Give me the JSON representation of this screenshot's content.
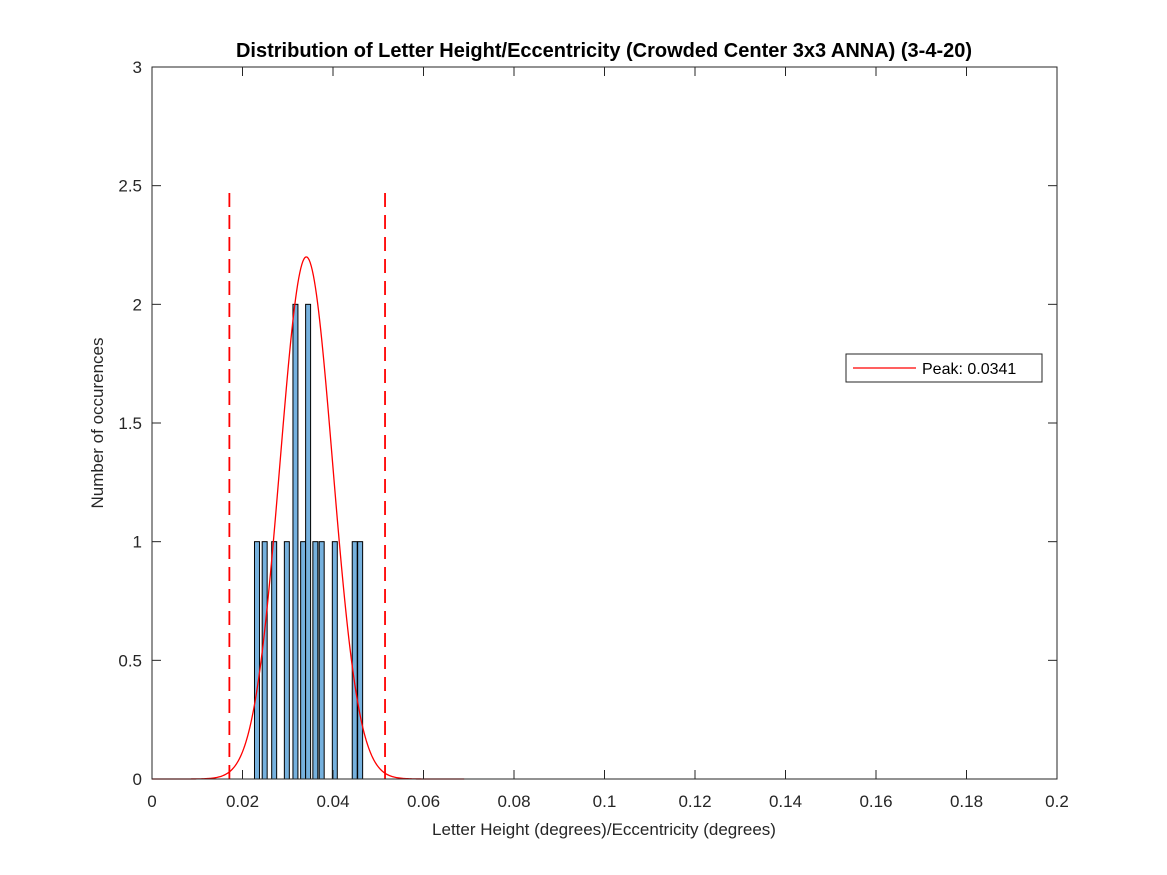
{
  "figure": {
    "background": "#ffffff"
  },
  "chart_data": {
    "type": "bar",
    "title": "Distribution of Letter Height/Eccentricity (Crowded Center 3x3 ANNA) (3-4-20)",
    "xlabel": "Letter Height (degrees)/Eccentricity (degrees)",
    "ylabel": "Number of occurences",
    "xlim": [
      0,
      0.2
    ],
    "ylim": [
      0,
      3
    ],
    "xticks": [
      0,
      0.02,
      0.04,
      0.06,
      0.08,
      0.1,
      0.12,
      0.14,
      0.16,
      0.18,
      0.2
    ],
    "xtick_labels": [
      "0",
      "0.02",
      "0.04",
      "0.06",
      "0.08",
      "0.1",
      "0.12",
      "0.14",
      "0.16",
      "0.18",
      "0.2"
    ],
    "yticks": [
      0,
      0.5,
      1,
      1.5,
      2,
      2.5,
      3
    ],
    "ytick_labels": [
      "0",
      "0.5",
      "1",
      "1.5",
      "2",
      "2.5",
      "3"
    ],
    "grid": false,
    "bar_width": 0.0011,
    "bar_color": "#76b1de",
    "bar_edge_color": "#000000",
    "bars": [
      {
        "x": 0.0232,
        "y": 1
      },
      {
        "x": 0.0249,
        "y": 1
      },
      {
        "x": 0.027,
        "y": 1
      },
      {
        "x": 0.0298,
        "y": 1
      },
      {
        "x": 0.0317,
        "y": 2
      },
      {
        "x": 0.0334,
        "y": 1
      },
      {
        "x": 0.0345,
        "y": 2
      },
      {
        "x": 0.0361,
        "y": 1
      },
      {
        "x": 0.0375,
        "y": 1
      },
      {
        "x": 0.0404,
        "y": 1
      },
      {
        "x": 0.0448,
        "y": 1
      },
      {
        "x": 0.046,
        "y": 1
      }
    ],
    "fit_curve": {
      "type": "gaussian",
      "name": "Peak: 0.0341",
      "peak_x": 0.0341,
      "peak_y": 2.2,
      "sigma": 0.0058,
      "x_range": [
        0,
        0.069
      ],
      "color": "#ff0000"
    },
    "vlines": [
      {
        "x": 0.0171,
        "y_range": [
          0,
          2.5
        ],
        "color": "#ff0000",
        "style": "dashed"
      },
      {
        "x": 0.0515,
        "y_range": [
          0,
          2.5
        ],
        "color": "#ff0000",
        "style": "dashed"
      }
    ],
    "legend": {
      "placement": "right",
      "entries": [
        "Peak: 0.0341"
      ]
    }
  }
}
